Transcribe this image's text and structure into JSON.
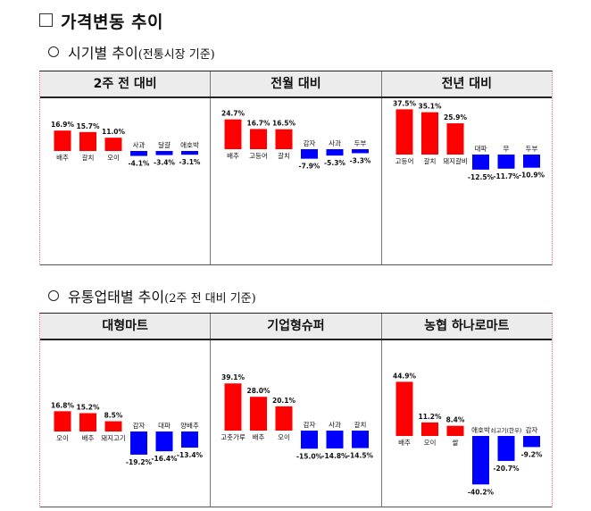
{
  "heading": "가격변동 추이",
  "section1": {
    "title": "시기별 추이",
    "note": "(전통시장 기준)",
    "columns": [
      "2주 전 대비",
      "전월 대비",
      "전년 대비"
    ]
  },
  "section2": {
    "title": "유통업태별 추이",
    "note": "(2주 전 대비 기준)",
    "columns": [
      "대형마트",
      "기업형슈퍼",
      "농협 하나로마트"
    ]
  },
  "colors": {
    "increase": "#ff0000",
    "decrease": "#0000ff"
  },
  "chart_data": [
    {
      "type": "bar",
      "categories": [
        "배추",
        "갈치",
        "오이",
        "사과",
        "달걀",
        "애호박"
      ],
      "values": [
        16.9,
        15.7,
        11.0,
        -4.1,
        -3.4,
        -3.1
      ]
    },
    {
      "type": "bar",
      "categories": [
        "배추",
        "고등어",
        "갈치",
        "감자",
        "사과",
        "두부"
      ],
      "values": [
        24.7,
        16.7,
        16.5,
        -7.9,
        -5.3,
        -3.3
      ]
    },
    {
      "type": "bar",
      "categories": [
        "고등어",
        "갈치",
        "돼지갈비",
        "대파",
        "무",
        "두부"
      ],
      "values": [
        37.5,
        35.1,
        25.9,
        -12.5,
        -11.7,
        -10.9
      ]
    },
    {
      "type": "bar",
      "categories": [
        "오이",
        "배추",
        "돼지고기",
        "감자",
        "대파",
        "양배추"
      ],
      "values": [
        16.8,
        15.2,
        8.5,
        -19.2,
        -16.4,
        -13.4
      ]
    },
    {
      "type": "bar",
      "categories": [
        "고춧가루",
        "배추",
        "오이",
        "감자",
        "사과",
        "갈치"
      ],
      "values": [
        39.1,
        28.0,
        20.1,
        -15.0,
        -14.8,
        -14.5
      ]
    },
    {
      "type": "bar",
      "categories": [
        "배추",
        "오이",
        "쌀",
        "애호박",
        "쇠고기(한우)",
        "감자"
      ],
      "values": [
        44.9,
        11.2,
        8.4,
        -40.2,
        -20.7,
        -9.2
      ]
    }
  ]
}
